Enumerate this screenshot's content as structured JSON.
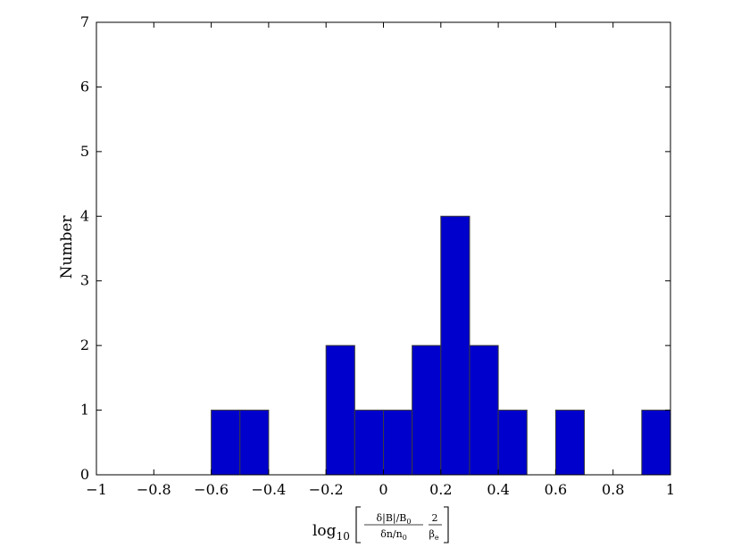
{
  "chart_data": {
    "type": "bar",
    "subtype": "histogram",
    "bins": [
      {
        "x0": -0.6,
        "x1": -0.5,
        "value": 1
      },
      {
        "x0": -0.5,
        "x1": -0.4,
        "value": 1
      },
      {
        "x0": -0.2,
        "x1": -0.1,
        "value": 2
      },
      {
        "x0": -0.1,
        "x1": 0.0,
        "value": 1
      },
      {
        "x0": 0.0,
        "x1": 0.1,
        "value": 1
      },
      {
        "x0": 0.1,
        "x1": 0.2,
        "value": 2
      },
      {
        "x0": 0.2,
        "x1": 0.3,
        "value": 4
      },
      {
        "x0": 0.3,
        "x1": 0.4,
        "value": 2
      },
      {
        "x0": 0.4,
        "x1": 0.5,
        "value": 1
      },
      {
        "x0": 0.6,
        "x1": 0.7,
        "value": 1
      },
      {
        "x0": 0.9,
        "x1": 1.0,
        "value": 1
      }
    ],
    "xlim": [
      -1,
      1
    ],
    "ylim": [
      0,
      7
    ],
    "x_ticks": [
      -1,
      -0.8,
      -0.6,
      -0.4,
      -0.2,
      0,
      0.2,
      0.4,
      0.6,
      0.8,
      1
    ],
    "x_tick_labels": [
      "−1",
      "−0.8",
      "−0.6",
      "−0.4",
      "−0.2",
      "0",
      "0.2",
      "0.4",
      "0.6",
      "0.8",
      "1"
    ],
    "y_ticks": [
      0,
      1,
      2,
      3,
      4,
      5,
      6,
      7
    ],
    "y_tick_labels": [
      "0",
      "1",
      "2",
      "3",
      "4",
      "5",
      "6",
      "7"
    ],
    "ylabel": "Number",
    "xlabel": {
      "prefix": "log",
      "subscript": "10",
      "numerator": "δ|B|/B",
      "numerator_sub": "0",
      "denominator": "δn/n",
      "denominator_sub": "0",
      "factor_num": "2",
      "factor_den": "β",
      "factor_den_sub": "e"
    },
    "bar_color": "#0000cc",
    "bar_edge_color": "#3a3a3a",
    "grid": false,
    "legend": "none"
  }
}
